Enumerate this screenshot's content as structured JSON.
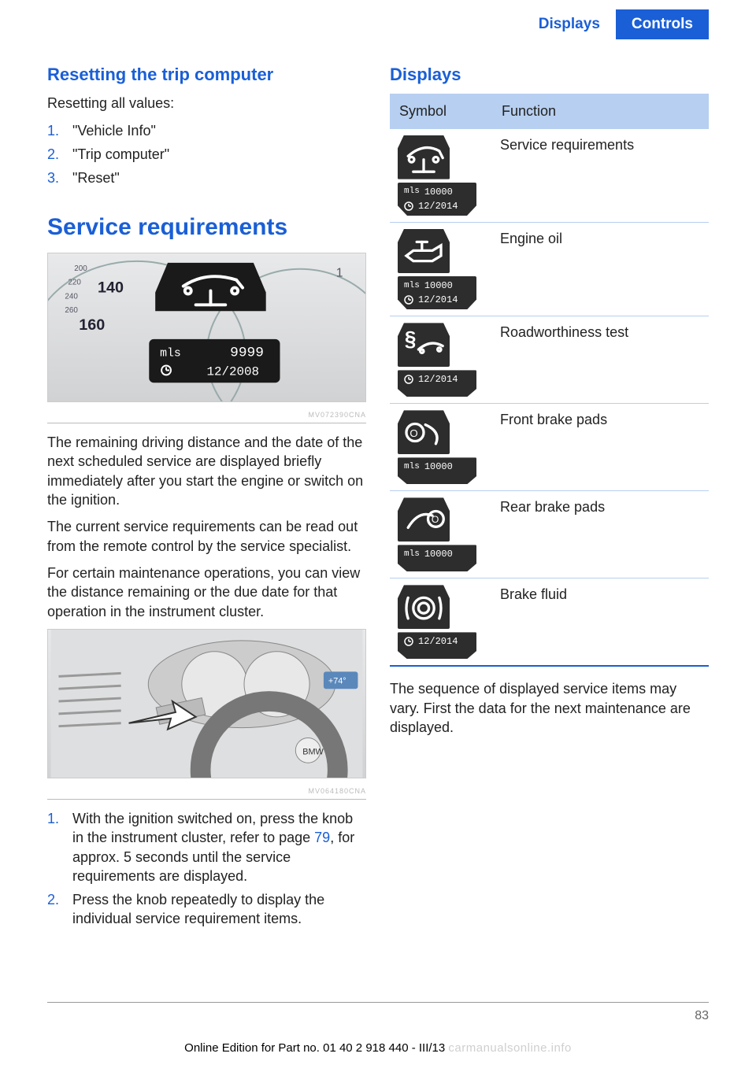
{
  "colors": {
    "accent": "#1a5fd6",
    "table_header_bg": "#b7cff0",
    "badge_bg": "#2d2d2d",
    "badge_text": "#ffffff",
    "body_text": "#222222",
    "page_bg": "#ffffff"
  },
  "header": {
    "left": "Displays",
    "right": "Controls"
  },
  "left": {
    "h_reset": "Resetting the trip computer",
    "p_reset": "Resetting all values:",
    "steps_reset": [
      "\"Vehicle Info\"",
      "\"Trip computer\"",
      "\"Reset\""
    ],
    "h_service": "Service requirements",
    "fig1": {
      "gauge_numbers": [
        "200",
        "220",
        "240",
        "260",
        "140",
        "160"
      ],
      "warn_icon": "car-lift",
      "display_line1_label": "mls",
      "display_line1_value": "9999",
      "display_line2_icon": "clock",
      "display_line2_value": "12/2008",
      "code": "MV072390CNA"
    },
    "p1": "The remaining driving distance and the date of the next scheduled service are displayed briefly immediately after you start the engine or switch on the ignition.",
    "p2": "The current service requirements can be read out from the remote control by the service specialist.",
    "p3": "For certain maintenance operations, you can view the distance remaining or the due date for that operation in the instrument cluster.",
    "fig2": {
      "code": "MV064180CNA"
    },
    "steps_display": [
      {
        "pre": "With the ignition switched on, press the knob in the instrument cluster, refer to page ",
        "link": "79",
        "post": ", for approx. 5 seconds until the service requirements are displayed."
      },
      {
        "pre": "Press the knob repeatedly to display the individual service requirement items.",
        "link": "",
        "post": ""
      }
    ]
  },
  "right": {
    "h_displays": "Displays",
    "table": {
      "headers": [
        "Symbol",
        "Function"
      ],
      "rows": [
        {
          "icon": "car-lift",
          "bot": [
            [
              "mls",
              "10000"
            ],
            [
              "clock",
              "12/2014"
            ]
          ],
          "func": "Service requirements"
        },
        {
          "icon": "oil-can",
          "bot": [
            [
              "mls",
              "10000"
            ],
            [
              "clock",
              "12/2014"
            ]
          ],
          "func": "Engine oil"
        },
        {
          "icon": "paragraph",
          "bot": [
            [
              "clock",
              "12/2014"
            ]
          ],
          "func": "Roadworthiness test"
        },
        {
          "icon": "brake-front",
          "bot": [
            [
              "mls",
              "10000"
            ]
          ],
          "func": "Front brake pads"
        },
        {
          "icon": "brake-rear",
          "bot": [
            [
              "mls",
              "10000"
            ]
          ],
          "func": "Rear brake pads"
        },
        {
          "icon": "brake-fluid",
          "bot": [
            [
              "clock",
              "12/2014"
            ]
          ],
          "func": "Brake fluid"
        }
      ]
    },
    "p_after": "The sequence of displayed service items may vary. First the data for the next maintenance are displayed."
  },
  "footer": {
    "page": "83",
    "line": "Online Edition for Part no. 01 40 2 918 440 - III/13",
    "watermark": "carmanualsonline.info"
  }
}
